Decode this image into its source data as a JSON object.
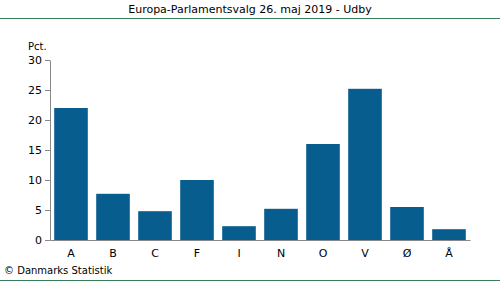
{
  "chart_data": {
    "type": "bar",
    "title": "Europa-Parlamentsvalg 26. maj 2019 - Udby",
    "ylabel": "Pct.",
    "source": "© Danmarks Statistik",
    "categories": [
      "A",
      "B",
      "C",
      "F",
      "I",
      "N",
      "O",
      "V",
      "Ø",
      "Å"
    ],
    "values": [
      22,
      7.7,
      4.8,
      10,
      2.3,
      5.2,
      16,
      25.2,
      5.5,
      1.8
    ],
    "color": "#085d8f",
    "ylim": [
      0,
      30
    ],
    "yticks": [
      0,
      5,
      10,
      15,
      20,
      25,
      30
    ],
    "grid": false
  }
}
